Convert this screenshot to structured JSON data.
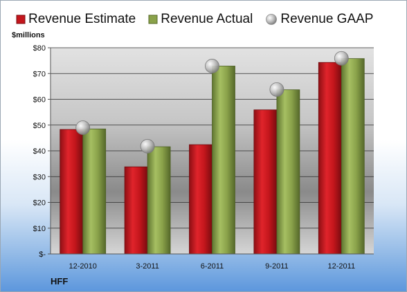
{
  "chart_data": {
    "type": "bar",
    "unit_label": "$millions",
    "company": "HFF",
    "categories": [
      "12-2010",
      "3-2011",
      "6-2011",
      "9-2011",
      "12-2011"
    ],
    "series": [
      {
        "name": "Revenue Estimate",
        "kind": "bar",
        "color": "#c4161c",
        "values": [
          48.3,
          33.8,
          42.4,
          55.9,
          74.3
        ]
      },
      {
        "name": "Revenue Actual",
        "kind": "bar",
        "color": "#8aa24a",
        "values": [
          48.5,
          41.6,
          72.9,
          63.7,
          75.8
        ]
      },
      {
        "name": "Revenue GAAP",
        "kind": "marker",
        "color": "#a8a8a8",
        "values": [
          49.0,
          41.8,
          72.9,
          63.8,
          75.9
        ]
      }
    ],
    "y_ticks": [
      "$-",
      "$10",
      "$20",
      "$30",
      "$40",
      "$50",
      "$60",
      "$70",
      "$80"
    ],
    "ylim": [
      0,
      80
    ],
    "grid": true,
    "legend_position": "top"
  }
}
